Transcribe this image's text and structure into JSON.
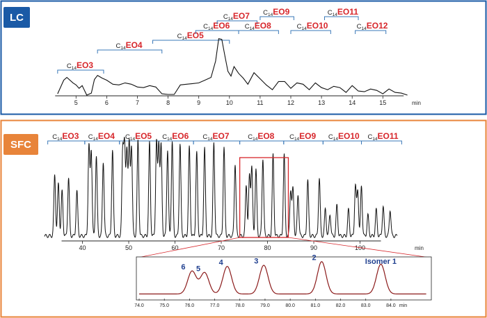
{
  "colors": {
    "lc_frame": "#1a5aa6",
    "sfc_frame": "#e8843a",
    "lc_badge": "#1a5aa6",
    "sfc_badge": "#e8843a",
    "group_red": "#d7262b",
    "bracket_blue": "#3a78b8",
    "trace": "#111111",
    "inset_trace": "#8b1a1a",
    "highlight_box": "#d7262b",
    "peak_label": "#1f3f8f"
  },
  "chart_data": [
    {
      "panel": "LC",
      "type": "line",
      "badge": "LC",
      "xlabel": "min",
      "xlim": [
        4.2,
        15.9
      ],
      "x_ticks": [
        "5",
        "6",
        "7",
        "8",
        "9",
        "10",
        "11",
        "12",
        "13",
        "14",
        "15"
      ],
      "grid": false,
      "groups": [
        {
          "prefix": "C",
          "sub": "14",
          "label": "EO3",
          "start": 4.4,
          "end": 5.9
        },
        {
          "prefix": "C",
          "sub": "14",
          "label": "EO4",
          "start": 5.7,
          "end": 7.8
        },
        {
          "prefix": "C",
          "sub": "14",
          "label": "EO5",
          "start": 7.5,
          "end": 10.0
        },
        {
          "prefix": "C",
          "sub": "14",
          "label": "EO6",
          "start": 8.9,
          "end": 10.3
        },
        {
          "prefix": "C",
          "sub": "14",
          "label": "EO7",
          "start": 9.6,
          "end": 10.9
        },
        {
          "prefix": "C",
          "sub": "14",
          "label": "EO8",
          "start": 10.3,
          "end": 11.6
        },
        {
          "prefix": "C",
          "sub": "14",
          "label": "EO9",
          "start": 11.0,
          "end": 12.1
        },
        {
          "prefix": "C",
          "sub": "14",
          "label": "EO10",
          "start": 12.0,
          "end": 13.3
        },
        {
          "prefix": "C",
          "sub": "14",
          "label": "EO11",
          "start": 13.1,
          "end": 14.2
        },
        {
          "prefix": "C",
          "sub": "14",
          "label": "EO12",
          "start": 14.1,
          "end": 15.1
        }
      ],
      "series": [
        {
          "x": [
            4.4,
            4.6,
            4.7,
            4.9,
            5.0,
            5.1,
            5.2,
            5.35,
            5.5,
            5.6,
            5.7,
            5.85,
            6.0,
            6.2,
            6.4,
            6.6,
            6.8,
            7.0,
            7.2,
            7.4,
            7.6,
            7.8,
            8.0,
            8.2,
            8.4,
            8.6,
            8.8,
            9.0,
            9.2,
            9.4,
            9.55,
            9.65,
            9.75,
            9.85,
            9.95,
            10.05,
            10.15,
            10.3,
            10.45,
            10.6,
            10.8,
            11.0,
            11.2,
            11.4,
            11.6,
            11.8,
            12.0,
            12.2,
            12.4,
            12.6,
            12.8,
            13.0,
            13.2,
            13.4,
            13.6,
            13.8,
            14.0,
            14.2,
            14.4,
            14.6,
            14.8,
            15.0,
            15.2,
            15.4,
            15.6,
            15.8
          ],
          "y": [
            0.02,
            0.24,
            0.26,
            0.2,
            0.15,
            0.12,
            0.14,
            0.02,
            0.03,
            0.25,
            0.29,
            0.27,
            0.22,
            0.18,
            0.15,
            0.2,
            0.16,
            0.14,
            0.11,
            0.16,
            0.12,
            0.04,
            0.01,
            0.03,
            0.15,
            0.18,
            0.17,
            0.2,
            0.22,
            0.28,
            0.5,
            0.85,
            0.82,
            0.6,
            0.35,
            0.3,
            0.42,
            0.34,
            0.25,
            0.18,
            0.33,
            0.26,
            0.15,
            0.1,
            0.2,
            0.22,
            0.1,
            0.2,
            0.16,
            0.1,
            0.18,
            0.13,
            0.08,
            0.15,
            0.11,
            0.06,
            0.14,
            0.08,
            0.05,
            0.11,
            0.07,
            0.04,
            0.09,
            0.06,
            0.03,
            0.02
          ]
        }
      ]
    },
    {
      "panel": "SFC",
      "type": "line",
      "badge": "SFC",
      "xlabel": "min",
      "xlim": [
        31.5,
        111.5
      ],
      "x_ticks": [
        "40",
        "50",
        "60",
        "70",
        "80",
        "90",
        "100"
      ],
      "grid": false,
      "groups": [
        {
          "prefix": "C",
          "sub": "14",
          "label": "EO3",
          "start": 32.5,
          "end": 40.5
        },
        {
          "prefix": "C",
          "sub": "14",
          "label": "EO4",
          "start": 40.5,
          "end": 48.0
        },
        {
          "prefix": "C",
          "sub": "14",
          "label": "EO5",
          "start": 48.0,
          "end": 56.5
        },
        {
          "prefix": "C",
          "sub": "14",
          "label": "EO6",
          "start": 56.5,
          "end": 64.0
        },
        {
          "prefix": "C",
          "sub": "14",
          "label": "EO7",
          "start": 64.0,
          "end": 74.0
        },
        {
          "prefix": "C",
          "sub": "14",
          "label": "EO8",
          "start": 74.0,
          "end": 83.5
        },
        {
          "prefix": "C",
          "sub": "14",
          "label": "EO9",
          "start": 83.5,
          "end": 92.0
        },
        {
          "prefix": "C",
          "sub": "14",
          "label": "EO10",
          "start": 92.0,
          "end": 100.3
        },
        {
          "prefix": "C",
          "sub": "14",
          "label": "EO11",
          "start": 100.3,
          "end": 109.0
        }
      ],
      "zoom_window": [
        74.0,
        84.5
      ],
      "series": [
        {
          "peaks_x": [
            34.0,
            34.8,
            35.6,
            37.0,
            38.8,
            41.4,
            41.9,
            43.0,
            44.5,
            46.5,
            48.7,
            49.1,
            49.6,
            50.1,
            50.6,
            52.0,
            54.5,
            56.0,
            56.5,
            57.0,
            58.4,
            59.4,
            61.1,
            63.1,
            64.7,
            66.4,
            68.4,
            70.6,
            73.0,
            75.4,
            76.1,
            76.6,
            77.5,
            79.0,
            81.2,
            83.6,
            85.0,
            85.5,
            86.6,
            88.7,
            91.2,
            92.5,
            93.5,
            95.0,
            97.5,
            99.0,
            99.5,
            100.3,
            101.7,
            103.5,
            105.0,
            106.5
          ],
          "peaks_y": [
            0.56,
            0.48,
            0.41,
            0.53,
            0.41,
            0.82,
            0.78,
            0.73,
            0.68,
            0.78,
            0.77,
            0.81,
            0.79,
            0.84,
            0.82,
            0.87,
            0.85,
            0.86,
            0.84,
            0.82,
            0.79,
            0.86,
            0.84,
            0.81,
            0.76,
            0.8,
            0.85,
            0.81,
            0.66,
            0.47,
            0.55,
            0.63,
            0.61,
            0.71,
            0.74,
            0.74,
            0.42,
            0.43,
            0.38,
            0.51,
            0.53,
            0.25,
            0.2,
            0.28,
            0.24,
            0.46,
            0.42,
            0.46,
            0.19,
            0.24,
            0.27,
            0.24
          ],
          "baseline": 0.02
        }
      ]
    },
    {
      "panel": "SFC-zoom",
      "type": "line",
      "xlabel": "min",
      "xlim": [
        74.0,
        84.5
      ],
      "x_ticks": [
        "74.0",
        "75.0",
        "76.0",
        "77.0",
        "78.0",
        "79.0",
        "80.0",
        "81.0",
        "82.0",
        "83.0",
        "84.0"
      ],
      "grid": false,
      "annotations": [
        {
          "label": "6",
          "x": 76.0
        },
        {
          "label": "5",
          "x": 76.6
        },
        {
          "label": "4",
          "x": 77.5
        },
        {
          "label": "3",
          "x": 78.9
        },
        {
          "label": "2",
          "x": 81.2
        },
        {
          "label": "Isomer 1",
          "x": 83.6
        }
      ],
      "series": [
        {
          "peaks_x": [
            76.1,
            76.6,
            77.5,
            78.95,
            81.25,
            83.6
          ],
          "peaks_y": [
            0.62,
            0.58,
            0.75,
            0.78,
            0.88,
            0.81
          ],
          "baseline": 0.03
        }
      ]
    }
  ]
}
